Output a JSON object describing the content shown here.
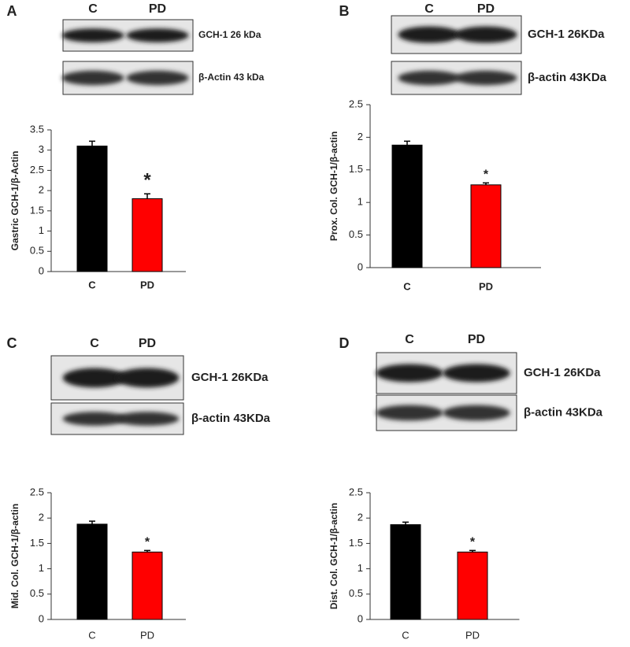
{
  "chart_data": [
    {
      "type": "bar",
      "panel": "A",
      "lanes": [
        "C",
        "PD"
      ],
      "blots": [
        "GCH-1 26 kDa",
        "β-Actin 43 kDa"
      ],
      "ylabel": "Gastric GCH-1/β-Actin",
      "categories": [
        "C",
        "PD"
      ],
      "values": [
        3.1,
        1.8
      ],
      "errors": [
        0.12,
        0.12
      ],
      "colors": [
        "#000000",
        "#ff0000"
      ],
      "significance": "*",
      "ylim": [
        0,
        3.5
      ],
      "yticks": [
        0,
        0.5,
        1,
        1.5,
        2,
        2.5,
        3,
        3.5
      ]
    },
    {
      "type": "bar",
      "panel": "B",
      "lanes": [
        "C",
        "PD"
      ],
      "blots": [
        "GCH-1 26KDa",
        "β-actin 43KDa"
      ],
      "ylabel": "Prox. Col. GCH-1/β-actin",
      "categories": [
        "C",
        "PD"
      ],
      "values": [
        1.88,
        1.27
      ],
      "errors": [
        0.06,
        0.03
      ],
      "colors": [
        "#000000",
        "#ff0000"
      ],
      "significance": "*",
      "ylim": [
        0,
        2.5
      ],
      "yticks": [
        0,
        0.5,
        1,
        1.5,
        2,
        2.5
      ]
    },
    {
      "type": "bar",
      "panel": "C",
      "lanes": [
        "C",
        "PD"
      ],
      "blots": [
        "GCH-1 26KDa",
        "β-actin 43KDa"
      ],
      "ylabel": "Mid. Col. GCH-1/β-actin",
      "categories": [
        "C",
        "PD"
      ],
      "values": [
        1.88,
        1.33
      ],
      "errors": [
        0.06,
        0.03
      ],
      "colors": [
        "#000000",
        "#ff0000"
      ],
      "significance": "*",
      "ylim": [
        0,
        2.5
      ],
      "yticks": [
        0,
        0.5,
        1,
        1.5,
        2,
        2.5
      ]
    },
    {
      "type": "bar",
      "panel": "D",
      "lanes": [
        "C",
        "PD"
      ],
      "blots": [
        "GCH-1 26KDa",
        "β-actin 43KDa"
      ],
      "ylabel": "Dist. Col. GCH-1/β-actin",
      "categories": [
        "C",
        "PD"
      ],
      "values": [
        1.87,
        1.33
      ],
      "errors": [
        0.05,
        0.03
      ],
      "colors": [
        "#000000",
        "#ff0000"
      ],
      "significance": "*",
      "ylim": [
        0,
        2.5
      ],
      "yticks": [
        0,
        0.5,
        1,
        1.5,
        2,
        2.5
      ]
    }
  ]
}
